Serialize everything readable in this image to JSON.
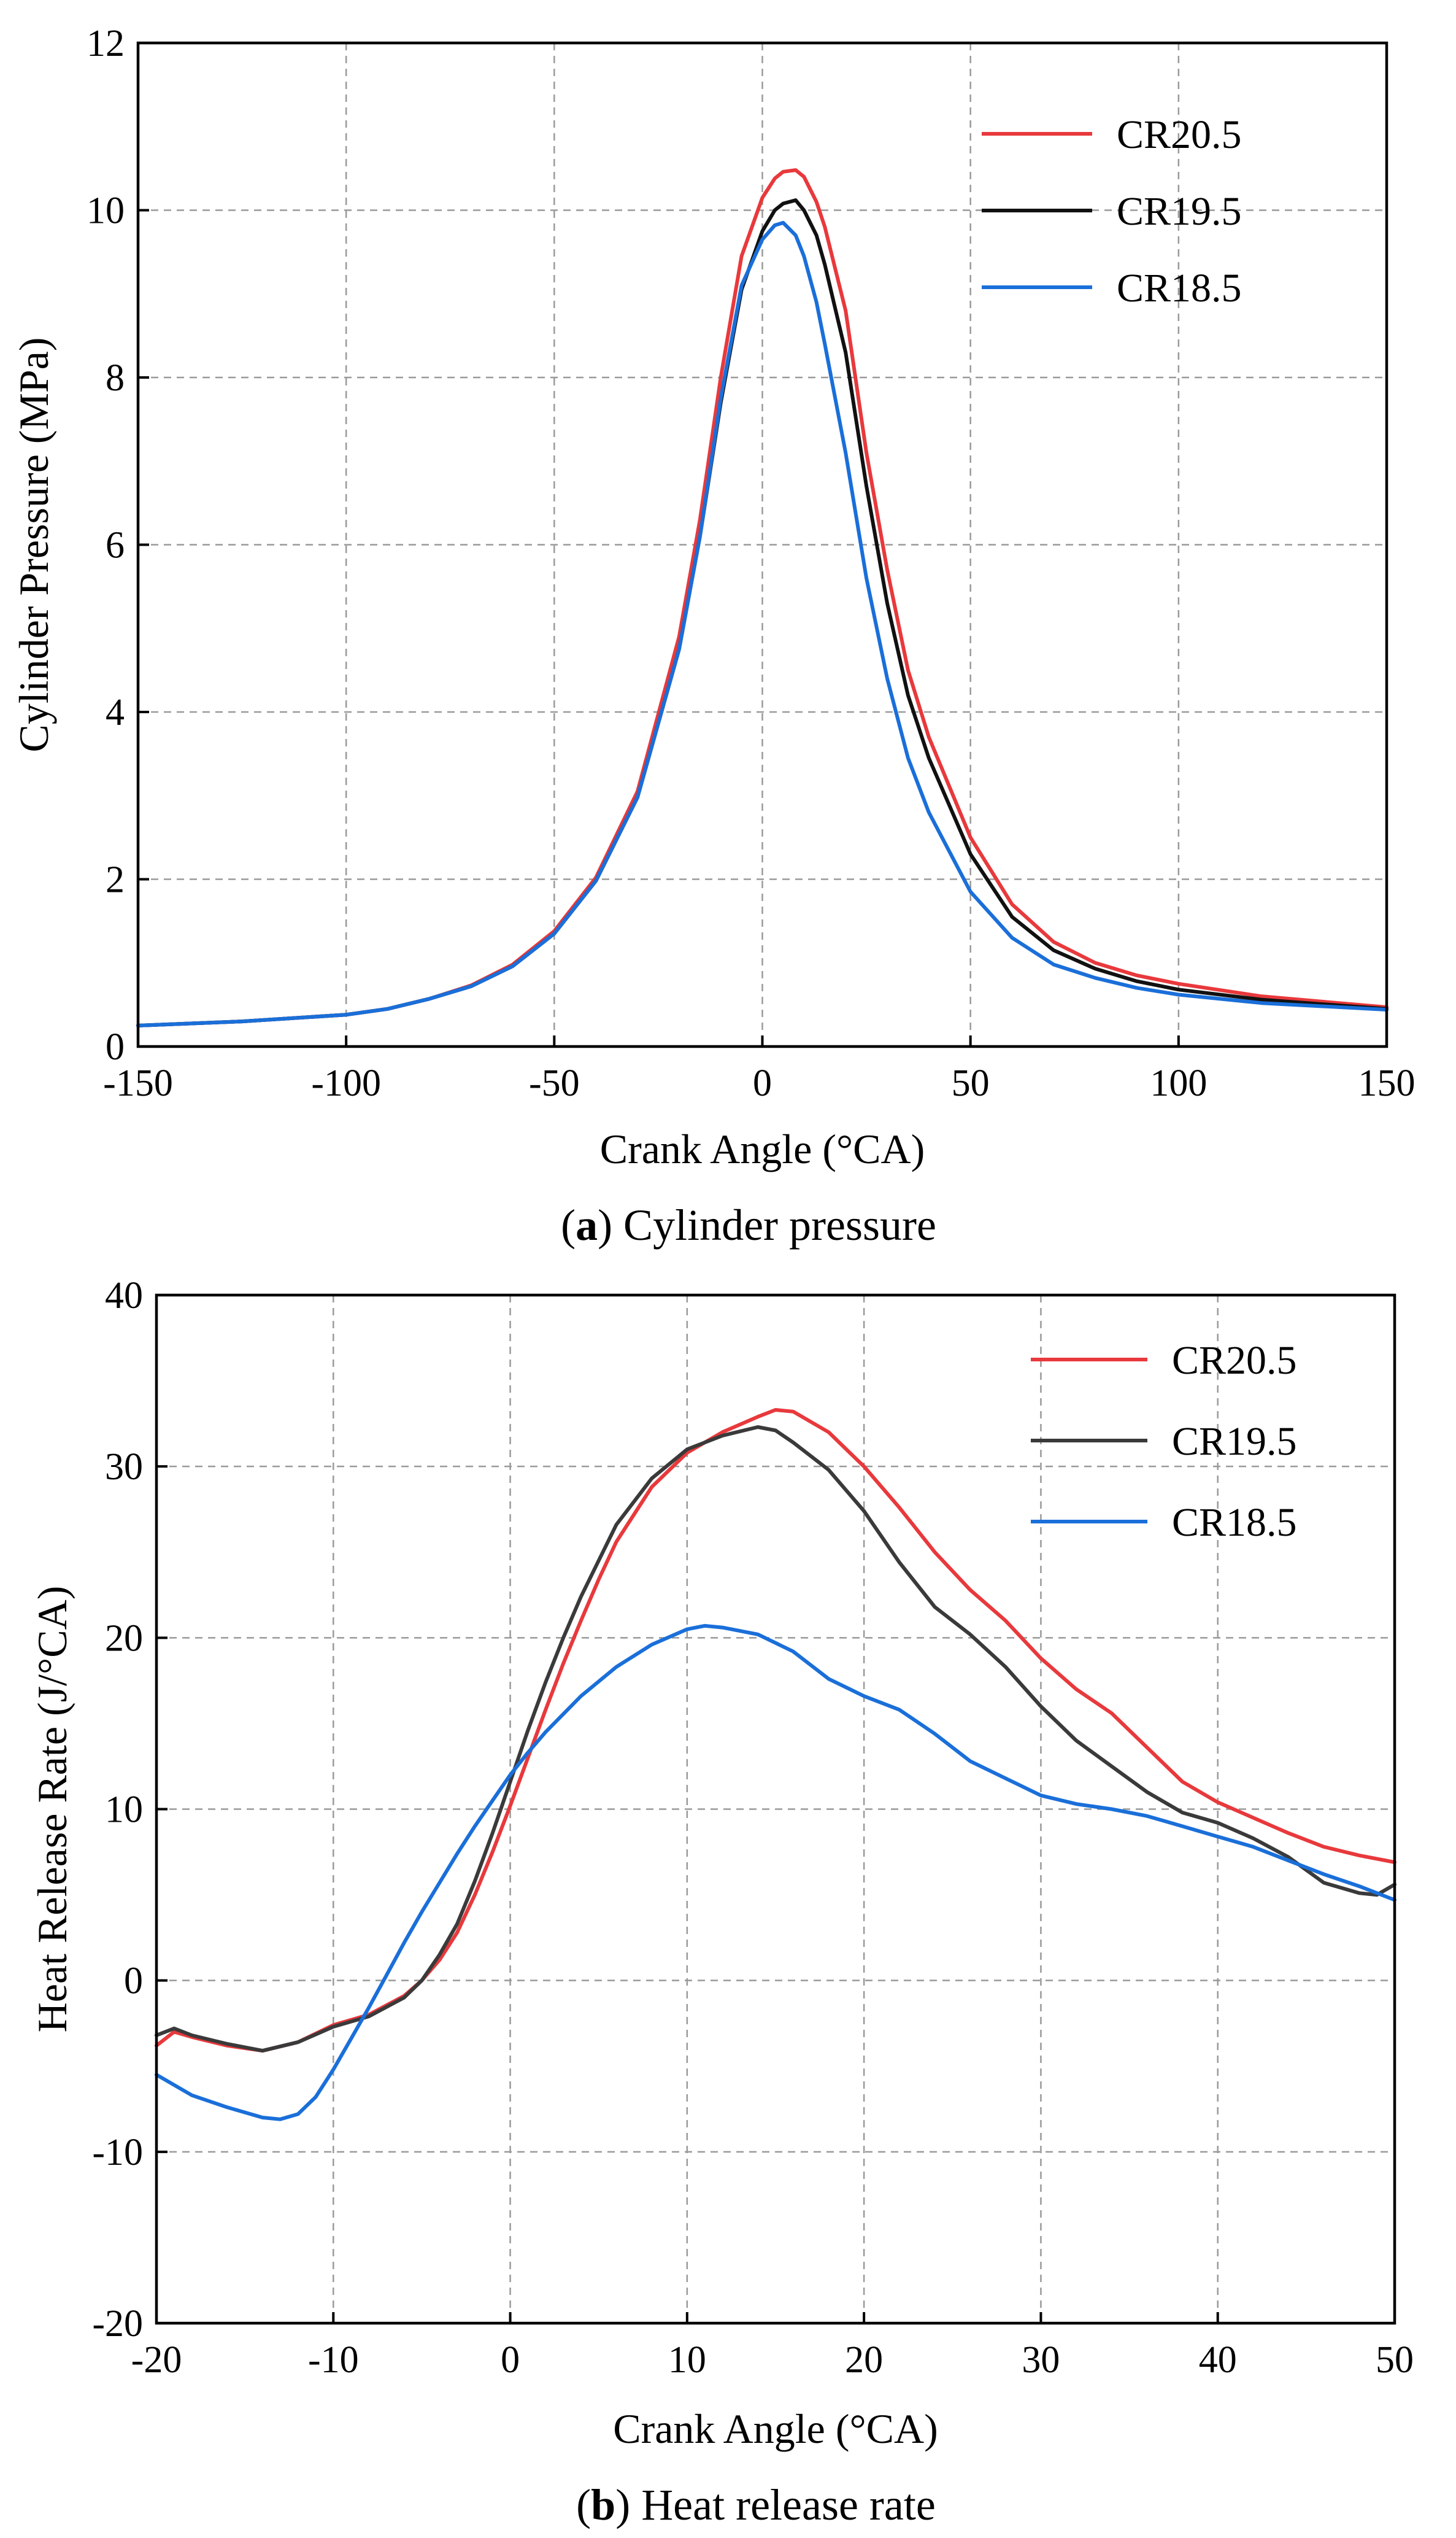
{
  "chart_data": [
    {
      "type": "line",
      "title": "",
      "caption_label": "a",
      "caption_text": "Cylinder pressure",
      "xlabel": "Crank Angle (°CA)",
      "ylabel": "Cylinder Pressure (MPa)",
      "xlim": [
        -150,
        150
      ],
      "ylim": [
        0,
        12
      ],
      "xticks": [
        -150,
        -100,
        -50,
        0,
        50,
        100,
        150
      ],
      "yticks": [
        0,
        2,
        4,
        6,
        8,
        10,
        12
      ],
      "grid": true,
      "legend_position": "top-right",
      "series": [
        {
          "name": "CR20.5",
          "color": "#e8393c",
          "x": [
            -150,
            -125,
            -100,
            -90,
            -80,
            -70,
            -60,
            -50,
            -40,
            -30,
            -20,
            -15,
            -10,
            -5,
            0,
            3,
            5,
            8,
            10,
            13,
            15,
            20,
            25,
            30,
            35,
            40,
            50,
            60,
            70,
            80,
            90,
            100,
            120,
            150
          ],
          "y": [
            0.25,
            0.3,
            0.38,
            0.45,
            0.57,
            0.73,
            0.98,
            1.38,
            2.02,
            3.05,
            4.9,
            6.3,
            8.0,
            9.45,
            10.15,
            10.38,
            10.46,
            10.48,
            10.4,
            10.1,
            9.8,
            8.8,
            7.1,
            5.7,
            4.5,
            3.7,
            2.5,
            1.7,
            1.25,
            1.0,
            0.85,
            0.75,
            0.6,
            0.47
          ]
        },
        {
          "name": "CR19.5",
          "color": "#111111",
          "x": [
            -150,
            -125,
            -100,
            -90,
            -80,
            -70,
            -60,
            -50,
            -40,
            -30,
            -20,
            -15,
            -10,
            -5,
            0,
            3,
            5,
            8,
            10,
            13,
            15,
            20,
            25,
            30,
            35,
            40,
            50,
            60,
            70,
            80,
            90,
            100,
            120,
            150
          ],
          "y": [
            0.25,
            0.3,
            0.38,
            0.45,
            0.57,
            0.72,
            0.96,
            1.35,
            1.98,
            2.98,
            4.75,
            6.1,
            7.7,
            9.05,
            9.75,
            10.0,
            10.08,
            10.12,
            10.0,
            9.7,
            9.35,
            8.3,
            6.7,
            5.3,
            4.2,
            3.45,
            2.3,
            1.55,
            1.15,
            0.93,
            0.78,
            0.68,
            0.56,
            0.45
          ]
        },
        {
          "name": "CR18.5",
          "color": "#1a6fd9",
          "x": [
            -150,
            -125,
            -100,
            -90,
            -80,
            -70,
            -60,
            -50,
            -40,
            -30,
            -20,
            -15,
            -10,
            -5,
            0,
            3,
            5,
            8,
            10,
            13,
            15,
            20,
            25,
            30,
            35,
            40,
            50,
            60,
            70,
            80,
            90,
            100,
            120,
            150
          ],
          "y": [
            0.25,
            0.3,
            0.38,
            0.45,
            0.57,
            0.72,
            0.96,
            1.35,
            1.98,
            2.98,
            4.75,
            6.1,
            7.75,
            9.1,
            9.65,
            9.82,
            9.85,
            9.7,
            9.45,
            8.9,
            8.4,
            7.1,
            5.6,
            4.4,
            3.45,
            2.8,
            1.85,
            1.3,
            0.98,
            0.82,
            0.7,
            0.62,
            0.52,
            0.44
          ]
        }
      ]
    },
    {
      "type": "line",
      "title": "",
      "caption_label": "b",
      "caption_text": "Heat release rate",
      "xlabel": "Crank Angle (°CA)",
      "ylabel": "Heat Release Rate (J/°CA)",
      "xlim": [
        -20,
        50
      ],
      "ylim": [
        -20,
        40
      ],
      "xticks": [
        -20,
        -10,
        0,
        10,
        20,
        30,
        40,
        50
      ],
      "yticks": [
        -20,
        -10,
        0,
        10,
        20,
        30,
        40
      ],
      "grid": true,
      "legend_position": "top-right",
      "series": [
        {
          "name": "CR20.5",
          "color": "#e8393c",
          "x": [
            -20,
            -19,
            -18,
            -16,
            -14,
            -12,
            -10,
            -8,
            -6,
            -5,
            -4,
            -3,
            -2,
            -1,
            0,
            1,
            2,
            3,
            4,
            5,
            6,
            8,
            10,
            12,
            14,
            15,
            16,
            18,
            20,
            22,
            24,
            26,
            28,
            30,
            32,
            34,
            36,
            38,
            40,
            42,
            44,
            46,
            48,
            50
          ],
          "y": [
            -3.8,
            -3.0,
            -3.3,
            -3.8,
            -4.1,
            -3.6,
            -2.6,
            -2.0,
            -0.9,
            0.0,
            1.2,
            2.8,
            5.0,
            7.5,
            10.2,
            13.0,
            15.8,
            18.5,
            21.0,
            23.4,
            25.6,
            28.8,
            30.8,
            32.0,
            32.9,
            33.3,
            33.2,
            32.0,
            30.0,
            27.6,
            25.0,
            22.8,
            21.0,
            18.8,
            17.0,
            15.6,
            13.6,
            11.6,
            10.4,
            9.5,
            8.6,
            7.8,
            7.3,
            6.9
          ]
        },
        {
          "name": "CR19.5",
          "color": "#3a3a3a",
          "x": [
            -20,
            -19,
            -18,
            -16,
            -14,
            -12,
            -10,
            -8,
            -6,
            -5,
            -4,
            -3,
            -2,
            -1,
            0,
            1,
            2,
            3,
            4,
            5,
            6,
            8,
            10,
            12,
            14,
            15,
            16,
            18,
            20,
            22,
            24,
            26,
            28,
            30,
            32,
            34,
            36,
            38,
            40,
            42,
            44,
            46,
            48,
            49,
            50
          ],
          "y": [
            -3.2,
            -2.8,
            -3.2,
            -3.7,
            -4.1,
            -3.6,
            -2.7,
            -2.1,
            -1.0,
            0.0,
            1.5,
            3.3,
            5.8,
            8.6,
            11.6,
            14.6,
            17.4,
            20.0,
            22.4,
            24.5,
            26.6,
            29.3,
            31.0,
            31.8,
            32.3,
            32.1,
            31.4,
            29.8,
            27.4,
            24.4,
            21.8,
            20.2,
            18.3,
            16.0,
            14.0,
            12.5,
            11.0,
            9.8,
            9.2,
            8.3,
            7.2,
            5.7,
            5.1,
            5.0,
            5.6
          ]
        },
        {
          "name": "CR18.5",
          "color": "#1a6fd9",
          "x": [
            -20,
            -18,
            -16,
            -14,
            -13,
            -12,
            -11,
            -10,
            -9,
            -8,
            -7,
            -6,
            -5,
            -4,
            -3,
            -2,
            -1,
            0,
            1,
            2,
            4,
            6,
            8,
            10,
            11,
            12,
            14,
            16,
            18,
            20,
            22,
            24,
            26,
            28,
            30,
            32,
            34,
            36,
            38,
            40,
            42,
            44,
            46,
            48,
            50
          ],
          "y": [
            -5.5,
            -6.7,
            -7.4,
            -8.0,
            -8.1,
            -7.8,
            -6.8,
            -5.2,
            -3.4,
            -1.6,
            0.3,
            2.2,
            4.0,
            5.7,
            7.4,
            9.0,
            10.5,
            12.0,
            13.3,
            14.5,
            16.6,
            18.3,
            19.6,
            20.5,
            20.7,
            20.6,
            20.2,
            19.2,
            17.6,
            16.6,
            15.8,
            14.4,
            12.8,
            11.8,
            10.8,
            10.3,
            10.0,
            9.6,
            9.0,
            8.4,
            7.8,
            7.0,
            6.2,
            5.5,
            4.7
          ]
        }
      ]
    }
  ]
}
